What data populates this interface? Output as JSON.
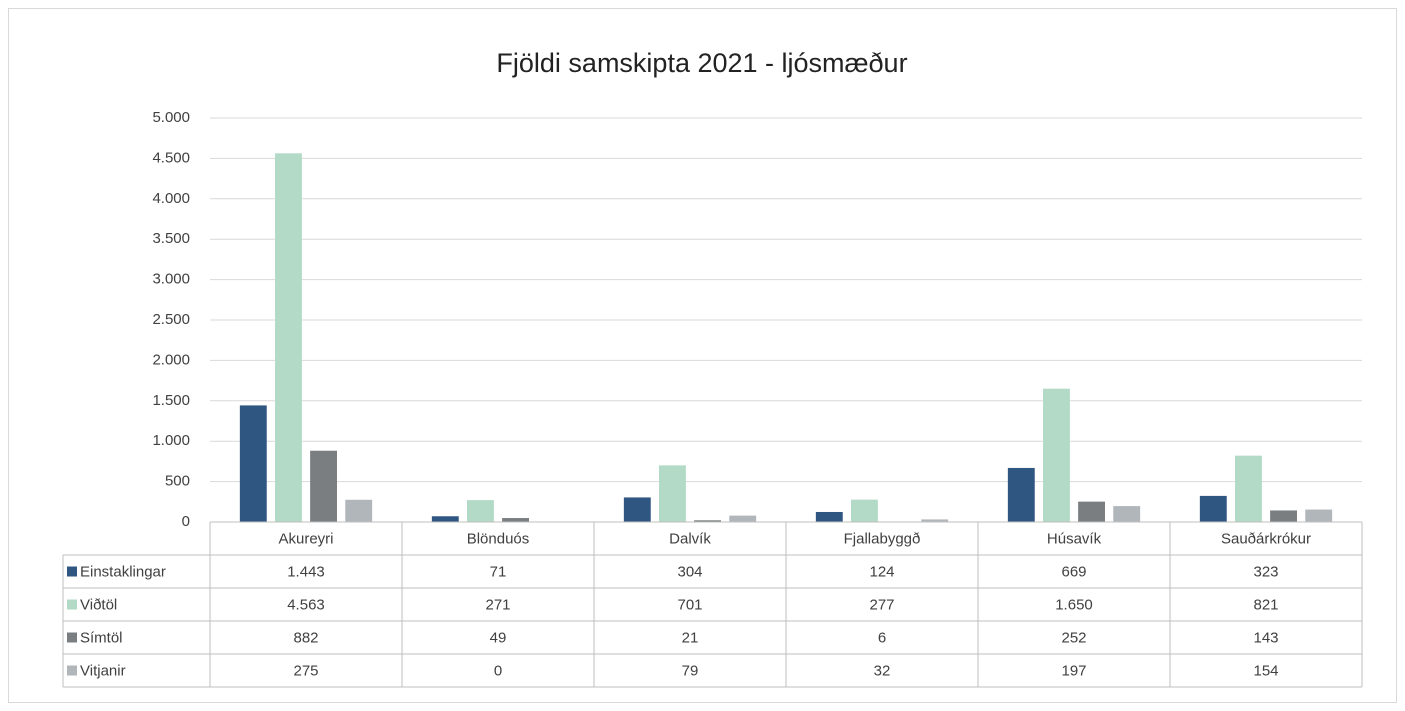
{
  "chart_data": {
    "type": "bar",
    "title": "Fjöldi samskipta 2021 - ljósmæður",
    "categories": [
      "Akureyri",
      "Blönduós",
      "Dalvík",
      "Fjallabyggð",
      "Húsavík",
      "Sauðárkrókur"
    ],
    "series": [
      {
        "name": "Einstaklingar",
        "color": "#2f5581",
        "values": [
          1443,
          71,
          304,
          124,
          669,
          323
        ],
        "value_labels": [
          "1.443",
          "71",
          "304",
          "124",
          "669",
          "323"
        ]
      },
      {
        "name": "Viðtöl",
        "color": "#b3dac6",
        "values": [
          4563,
          271,
          701,
          277,
          1650,
          821
        ],
        "value_labels": [
          "4.563",
          "271",
          "701",
          "277",
          "1.650",
          "821"
        ]
      },
      {
        "name": "Símtöl",
        "color": "#7a7e80",
        "values": [
          882,
          49,
          21,
          6,
          252,
          143
        ],
        "value_labels": [
          "882",
          "49",
          "21",
          "6",
          "252",
          "143"
        ]
      },
      {
        "name": "Vitjanir",
        "color": "#b1b6bb",
        "values": [
          275,
          0,
          79,
          32,
          197,
          154
        ],
        "value_labels": [
          "275",
          "0",
          "79",
          "32",
          "197",
          "154"
        ]
      }
    ],
    "ylim": [
      0,
      5000
    ],
    "yticks": [
      0,
      500,
      {
        "value": 1000,
        "label": "1.000"
      },
      {
        "value": 1500,
        "label": "1.500"
      },
      {
        "value": 2000,
        "label": "2.000"
      },
      {
        "value": 2500,
        "label": "2.500"
      },
      {
        "value": 3000,
        "label": "3.000"
      },
      {
        "value": 3500,
        "label": "3.500"
      },
      {
        "value": 4000,
        "label": "4.000"
      },
      {
        "value": 4500,
        "label": "4.500"
      },
      {
        "value": 5000,
        "label": "5.000"
      }
    ],
    "grid": true
  }
}
